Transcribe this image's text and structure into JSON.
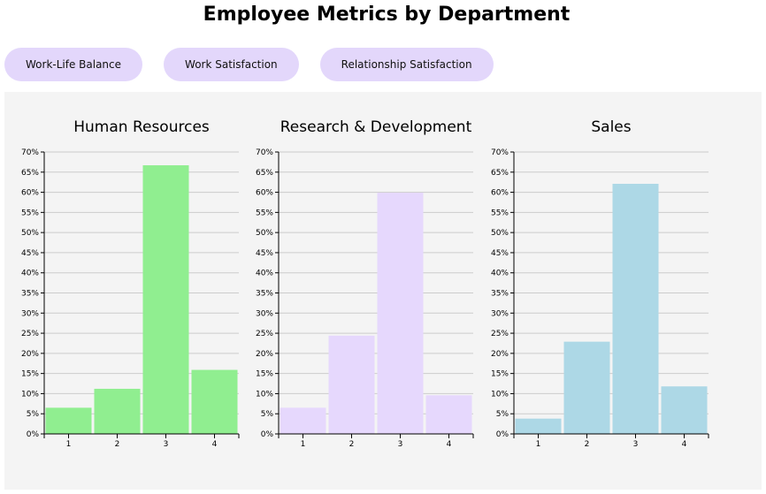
{
  "page": {
    "title": "Employee Metrics by Department"
  },
  "buttons": [
    {
      "label": "Work-Life Balance"
    },
    {
      "label": "Work Satisfaction"
    },
    {
      "label": "Relationship Satisfaction"
    }
  ],
  "colors": {
    "button_bg": "#e3d7fb",
    "panel_bg": "#f4f4f4",
    "grid": "#cccccc",
    "axis": "#000000"
  },
  "chart_data": [
    {
      "type": "bar",
      "title": "Human Resources",
      "categories": [
        "1",
        "2",
        "3",
        "4"
      ],
      "values": [
        6.5,
        11.2,
        66.7,
        15.9
      ],
      "ylim": [
        0,
        70
      ],
      "yticks": [
        "0%",
        "5%",
        "10%",
        "15%",
        "20%",
        "25%",
        "30%",
        "35%",
        "40%",
        "45%",
        "50%",
        "55%",
        "60%",
        "65%",
        "70%"
      ],
      "color": "#90ee90",
      "grid": true
    },
    {
      "type": "bar",
      "title": "Research & Development",
      "categories": [
        "1",
        "2",
        "3",
        "4"
      ],
      "values": [
        6.5,
        24.4,
        59.9,
        9.6
      ],
      "ylim": [
        0,
        70
      ],
      "yticks": [
        "0%",
        "5%",
        "10%",
        "15%",
        "20%",
        "25%",
        "30%",
        "35%",
        "40%",
        "45%",
        "50%",
        "55%",
        "60%",
        "65%",
        "70%"
      ],
      "color": "#e6d8fd",
      "grid": true
    },
    {
      "type": "bar",
      "title": "Sales",
      "categories": [
        "1",
        "2",
        "3",
        "4"
      ],
      "values": [
        3.8,
        22.9,
        62.1,
        11.8
      ],
      "ylim": [
        0,
        70
      ],
      "yticks": [
        "0%",
        "5%",
        "10%",
        "15%",
        "20%",
        "25%",
        "30%",
        "35%",
        "40%",
        "45%",
        "50%",
        "55%",
        "60%",
        "65%",
        "70%"
      ],
      "color": "#add8e6",
      "grid": true
    }
  ]
}
